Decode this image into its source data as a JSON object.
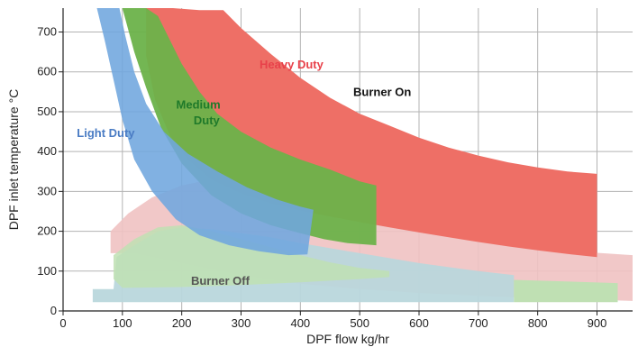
{
  "chart_data": {
    "type": "area",
    "title": "",
    "xlabel": "DPF flow kg/hr",
    "ylabel": "DPF inlet temperature °C",
    "xlim": [
      0,
      960
    ],
    "ylim": [
      0,
      760
    ],
    "x_ticks": [
      0,
      100,
      200,
      300,
      400,
      500,
      600,
      700,
      800,
      900
    ],
    "y_ticks": [
      0,
      100,
      200,
      300,
      400,
      500,
      600,
      700
    ],
    "grid": true,
    "colors": {
      "heavy": "#ee6f66",
      "heavy_low": "#f0c2c2",
      "medium": "#6cb24a",
      "medium_low": "#bfe0b3",
      "light": "#6fa6de",
      "burner_off": "#b9d7dc",
      "heavy_label": "#e8414a",
      "medium_label": "#1f7a2a",
      "light_label": "#4a7cc4",
      "grid": "#b3b3b3"
    },
    "region_labels": {
      "heavy": "Heavy Duty",
      "medium_line1": "Medium",
      "medium_line2": "Duty",
      "light": "Light Duty",
      "burner_on": "Burner On",
      "burner_off": "Burner Off"
    },
    "series": [
      {
        "name": "Heavy Duty",
        "polygon": [
          [
            140,
            760
          ],
          [
            185,
            760
          ],
          [
            230,
            755
          ],
          [
            270,
            755
          ],
          [
            300,
            710
          ],
          [
            350,
            645
          ],
          [
            400,
            585
          ],
          [
            450,
            535
          ],
          [
            500,
            495
          ],
          [
            550,
            465
          ],
          [
            600,
            435
          ],
          [
            650,
            410
          ],
          [
            700,
            390
          ],
          [
            750,
            373
          ],
          [
            800,
            360
          ],
          [
            850,
            350
          ],
          [
            900,
            344
          ],
          [
            900,
            135
          ],
          [
            850,
            143
          ],
          [
            800,
            152
          ],
          [
            750,
            162
          ],
          [
            700,
            173
          ],
          [
            650,
            185
          ],
          [
            600,
            197
          ],
          [
            550,
            210
          ],
          [
            500,
            223
          ],
          [
            450,
            237
          ],
          [
            400,
            252
          ],
          [
            350,
            270
          ],
          [
            300,
            295
          ],
          [
            250,
            330
          ],
          [
            210,
            380
          ],
          [
            180,
            440
          ],
          [
            155,
            530
          ],
          [
            140,
            640
          ]
        ]
      },
      {
        "name": "Heavy Duty low-temperature band",
        "polygon": [
          [
            80,
            200
          ],
          [
            110,
            245
          ],
          [
            150,
            285
          ],
          [
            200,
            315
          ],
          [
            250,
            330
          ],
          [
            300,
            320
          ],
          [
            350,
            290
          ],
          [
            400,
            255
          ],
          [
            500,
            225
          ],
          [
            600,
            200
          ],
          [
            700,
            178
          ],
          [
            800,
            160
          ],
          [
            900,
            146
          ],
          [
            960,
            140
          ],
          [
            960,
            25
          ],
          [
            900,
            28
          ],
          [
            800,
            32
          ],
          [
            700,
            38
          ],
          [
            600,
            45
          ],
          [
            500,
            55
          ],
          [
            400,
            68
          ],
          [
            300,
            90
          ],
          [
            200,
            120
          ],
          [
            120,
            145
          ],
          [
            80,
            145
          ]
        ]
      },
      {
        "name": "Medium Duty",
        "polygon": [
          [
            100,
            760
          ],
          [
            140,
            760
          ],
          [
            160,
            740
          ],
          [
            180,
            680
          ],
          [
            200,
            620
          ],
          [
            230,
            550
          ],
          [
            260,
            495
          ],
          [
            300,
            450
          ],
          [
            350,
            410
          ],
          [
            400,
            380
          ],
          [
            450,
            355
          ],
          [
            500,
            325
          ],
          [
            528,
            315
          ],
          [
            528,
            165
          ],
          [
            480,
            170
          ],
          [
            440,
            180
          ],
          [
            400,
            195
          ],
          [
            350,
            215
          ],
          [
            300,
            245
          ],
          [
            250,
            290
          ],
          [
            200,
            370
          ],
          [
            165,
            460
          ],
          [
            140,
            560
          ],
          [
            120,
            650
          ]
        ]
      },
      {
        "name": "Medium Duty low-temperature band",
        "polygon": [
          [
            85,
            140
          ],
          [
            120,
            180
          ],
          [
            160,
            210
          ],
          [
            200,
            215
          ],
          [
            250,
            200
          ],
          [
            300,
            180
          ],
          [
            350,
            160
          ],
          [
            400,
            140
          ],
          [
            450,
            122
          ],
          [
            500,
            108
          ],
          [
            550,
            100
          ],
          [
            550,
            85
          ],
          [
            500,
            80
          ],
          [
            400,
            72
          ],
          [
            300,
            65
          ],
          [
            200,
            60
          ],
          [
            100,
            58
          ],
          [
            85,
            80
          ]
        ]
      },
      {
        "name": "Light Duty",
        "polygon": [
          [
            57,
            760
          ],
          [
            95,
            760
          ],
          [
            105,
            690
          ],
          [
            120,
            600
          ],
          [
            140,
            520
          ],
          [
            170,
            450
          ],
          [
            210,
            395
          ],
          [
            260,
            350
          ],
          [
            310,
            310
          ],
          [
            360,
            280
          ],
          [
            400,
            262
          ],
          [
            422,
            254
          ],
          [
            412,
            142
          ],
          [
            380,
            140
          ],
          [
            330,
            150
          ],
          [
            280,
            165
          ],
          [
            230,
            190
          ],
          [
            190,
            230
          ],
          [
            150,
            300
          ],
          [
            120,
            380
          ],
          [
            100,
            480
          ],
          [
            85,
            580
          ],
          [
            70,
            680
          ]
        ]
      },
      {
        "name": "Burner Off",
        "polygon": [
          [
            50,
            22
          ],
          [
            50,
            55
          ],
          [
            85,
            55
          ],
          [
            90,
            135
          ],
          [
            120,
            165
          ],
          [
            160,
            200
          ],
          [
            200,
            210
          ],
          [
            250,
            205
          ],
          [
            300,
            195
          ],
          [
            350,
            185
          ],
          [
            400,
            170
          ],
          [
            500,
            145
          ],
          [
            600,
            120
          ],
          [
            700,
            100
          ],
          [
            760,
            90
          ],
          [
            760,
            22
          ]
        ]
      },
      {
        "name": "Burner Off medium extension",
        "polygon": [
          [
            760,
            22
          ],
          [
            760,
            78
          ],
          [
            935,
            70
          ],
          [
            935,
            22
          ]
        ]
      }
    ]
  }
}
